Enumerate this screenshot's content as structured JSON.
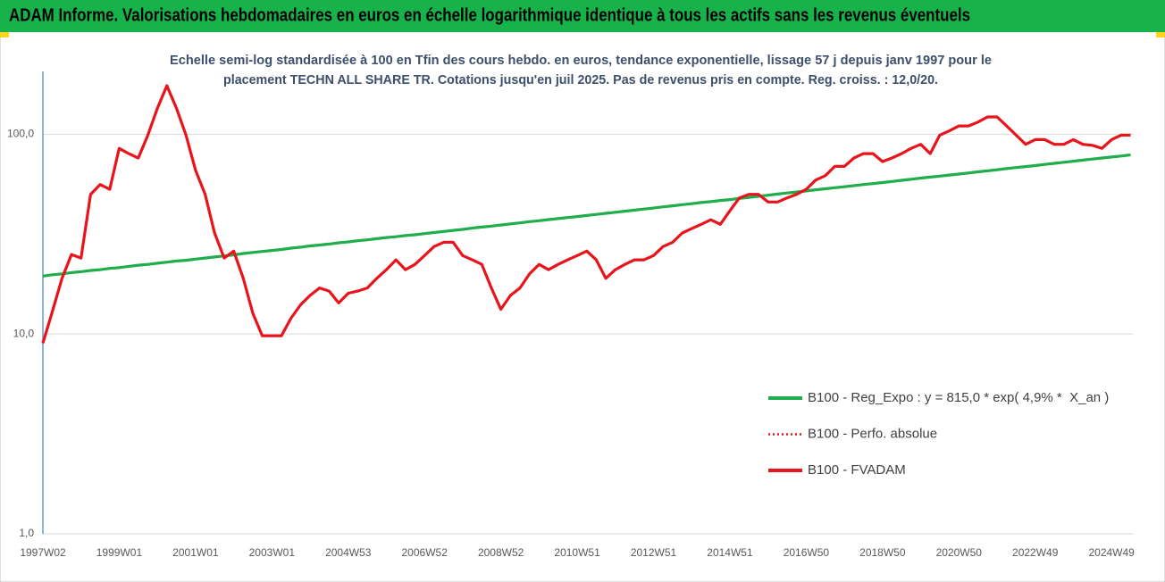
{
  "chart_data": {
    "type": "line",
    "title": "ADAM Informe. Valorisations hebdomadaires en euros en échelle logarithmique identique à tous les actifs sans les revenus éventuels",
    "subtitle": [
      "Echelle semi-log standardisée à 100 en Tfin des cours hebdo. en euros, tendance exponentielle, lissage 57 j depuis janv 1997 pour le",
      "placement TECHN ALL SHARE TR. Cotations jusqu'en juil 2025. Pas de revenus pris en compte. Reg. croiss. : 12,0/20."
    ],
    "log_scale": true,
    "grid": true,
    "legend": "right",
    "ylim": [
      1,
      200
    ],
    "yticks": [
      {
        "value": 1,
        "label": "1,0"
      },
      {
        "value": 10,
        "label": "10,0"
      },
      {
        "value": 100,
        "label": "100,0"
      }
    ],
    "categories": [
      "1997W02",
      null,
      null,
      null,
      null,
      null,
      null,
      null,
      "1999W01",
      null,
      null,
      null,
      null,
      null,
      null,
      null,
      "2001W01",
      null,
      null,
      null,
      null,
      null,
      null,
      null,
      "2003W01",
      null,
      null,
      null,
      null,
      null,
      null,
      null,
      "2004W53",
      null,
      null,
      null,
      null,
      null,
      null,
      null,
      "2006W52",
      null,
      null,
      null,
      null,
      null,
      null,
      null,
      "2008W52",
      null,
      null,
      null,
      null,
      null,
      null,
      null,
      "2010W51",
      null,
      null,
      null,
      null,
      null,
      null,
      null,
      "2012W51",
      null,
      null,
      null,
      null,
      null,
      null,
      null,
      "2014W51",
      null,
      null,
      null,
      null,
      null,
      null,
      null,
      "2016W50",
      null,
      null,
      null,
      null,
      null,
      null,
      null,
      "2018W50",
      null,
      null,
      null,
      null,
      null,
      null,
      null,
      "2020W50",
      null,
      null,
      null,
      null,
      null,
      null,
      null,
      "2022W49",
      null,
      null,
      null,
      null,
      null,
      null,
      null,
      "2024W49",
      null,
      null
    ],
    "series": [
      {
        "name": "B100 - Reg_Expo : y = 815,0 * exp( 4,9% *  X_an )",
        "color": "#1fae4b",
        "style": "solid",
        "values": [
          19.5,
          19.8,
          20.0,
          20.3,
          20.5,
          20.8,
          21.0,
          21.3,
          21.5,
          21.8,
          22.1,
          22.3,
          22.6,
          22.9,
          23.2,
          23.4,
          23.7,
          24.0,
          24.3,
          24.6,
          24.9,
          25.3,
          25.6,
          25.9,
          26.2,
          26.5,
          26.9,
          27.2,
          27.6,
          27.9,
          28.2,
          28.6,
          28.9,
          29.3,
          29.6,
          30.0,
          30.4,
          30.7,
          31.1,
          31.4,
          31.8,
          32.2,
          32.6,
          33.0,
          33.4,
          33.9,
          34.3,
          34.7,
          35.1,
          35.6,
          36.0,
          36.5,
          36.9,
          37.4,
          37.8,
          38.3,
          38.7,
          39.2,
          39.7,
          40.2,
          40.7,
          41.2,
          41.7,
          42.2,
          42.7,
          43.3,
          43.8,
          44.4,
          44.9,
          45.5,
          46.0,
          46.6,
          47.1,
          47.7,
          48.3,
          48.9,
          49.5,
          50.2,
          50.8,
          51.4,
          52.0,
          52.7,
          53.3,
          54.0,
          54.6,
          55.3,
          56.0,
          56.6,
          57.3,
          58.0,
          58.8,
          59.5,
          60.3,
          61.0,
          61.7,
          62.5,
          63.2,
          64.0,
          64.8,
          65.6,
          66.4,
          67.3,
          68.1,
          68.9,
          69.7,
          70.6,
          71.5,
          72.4,
          73.3,
          74.2,
          75.1,
          76.0,
          76.9,
          77.8,
          78.8
        ]
      },
      {
        "name": "B100 - Perfo. absolue",
        "color": "#e8141b",
        "style": "dotted",
        "values": [
          9,
          13,
          19,
          25,
          24,
          50,
          56,
          53,
          85,
          80,
          76,
          99,
          135,
          175,
          135,
          99,
          66,
          50,
          32,
          24,
          26,
          19,
          12.7,
          9.8,
          9.8,
          9.8,
          12,
          14,
          15.6,
          17,
          16.4,
          14.3,
          16,
          16.4,
          17,
          19,
          21,
          23.5,
          21,
          22.3,
          24.7,
          27.4,
          28.8,
          28.8,
          24.7,
          23.5,
          22.3,
          17,
          13.3,
          15.6,
          17,
          20,
          22.3,
          21,
          22.3,
          23.5,
          24.7,
          26,
          23.5,
          19,
          21,
          22.3,
          23.5,
          23.5,
          24.7,
          27.4,
          28.8,
          32,
          33.7,
          35.4,
          37.3,
          35.4,
          41.4,
          48,
          50,
          50,
          45.8,
          45.8,
          48,
          50,
          53,
          59,
          62,
          69,
          69,
          76,
          80,
          80,
          73,
          76,
          80,
          85,
          89,
          80,
          99,
          104,
          110,
          110,
          115,
          122,
          122,
          110,
          99,
          89,
          94,
          94,
          89,
          89,
          94,
          89,
          88,
          85,
          94,
          99,
          99
        ]
      },
      {
        "name": "B100 - FVADAM",
        "color": "#e8141b",
        "style": "solid",
        "values": [
          9,
          13,
          19,
          25,
          24,
          50,
          56,
          53,
          85,
          80,
          76,
          99,
          135,
          175,
          135,
          99,
          66,
          50,
          32,
          24,
          26,
          19,
          12.7,
          9.8,
          9.8,
          9.8,
          12,
          14,
          15.6,
          17,
          16.4,
          14.3,
          16,
          16.4,
          17,
          19,
          21,
          23.5,
          21,
          22.3,
          24.7,
          27.4,
          28.8,
          28.8,
          24.7,
          23.5,
          22.3,
          17,
          13.3,
          15.6,
          17,
          20,
          22.3,
          21,
          22.3,
          23.5,
          24.7,
          26,
          23.5,
          19,
          21,
          22.3,
          23.5,
          23.5,
          24.7,
          27.4,
          28.8,
          32,
          33.7,
          35.4,
          37.3,
          35.4,
          41.4,
          48,
          50,
          50,
          45.8,
          45.8,
          48,
          50,
          53,
          59,
          62,
          69,
          69,
          76,
          80,
          80,
          73,
          76,
          80,
          85,
          89,
          80,
          99,
          104,
          110,
          110,
          115,
          122,
          122,
          110,
          99,
          89,
          94,
          94,
          89,
          89,
          94,
          89,
          88,
          85,
          94,
          99,
          99
        ]
      }
    ]
  }
}
